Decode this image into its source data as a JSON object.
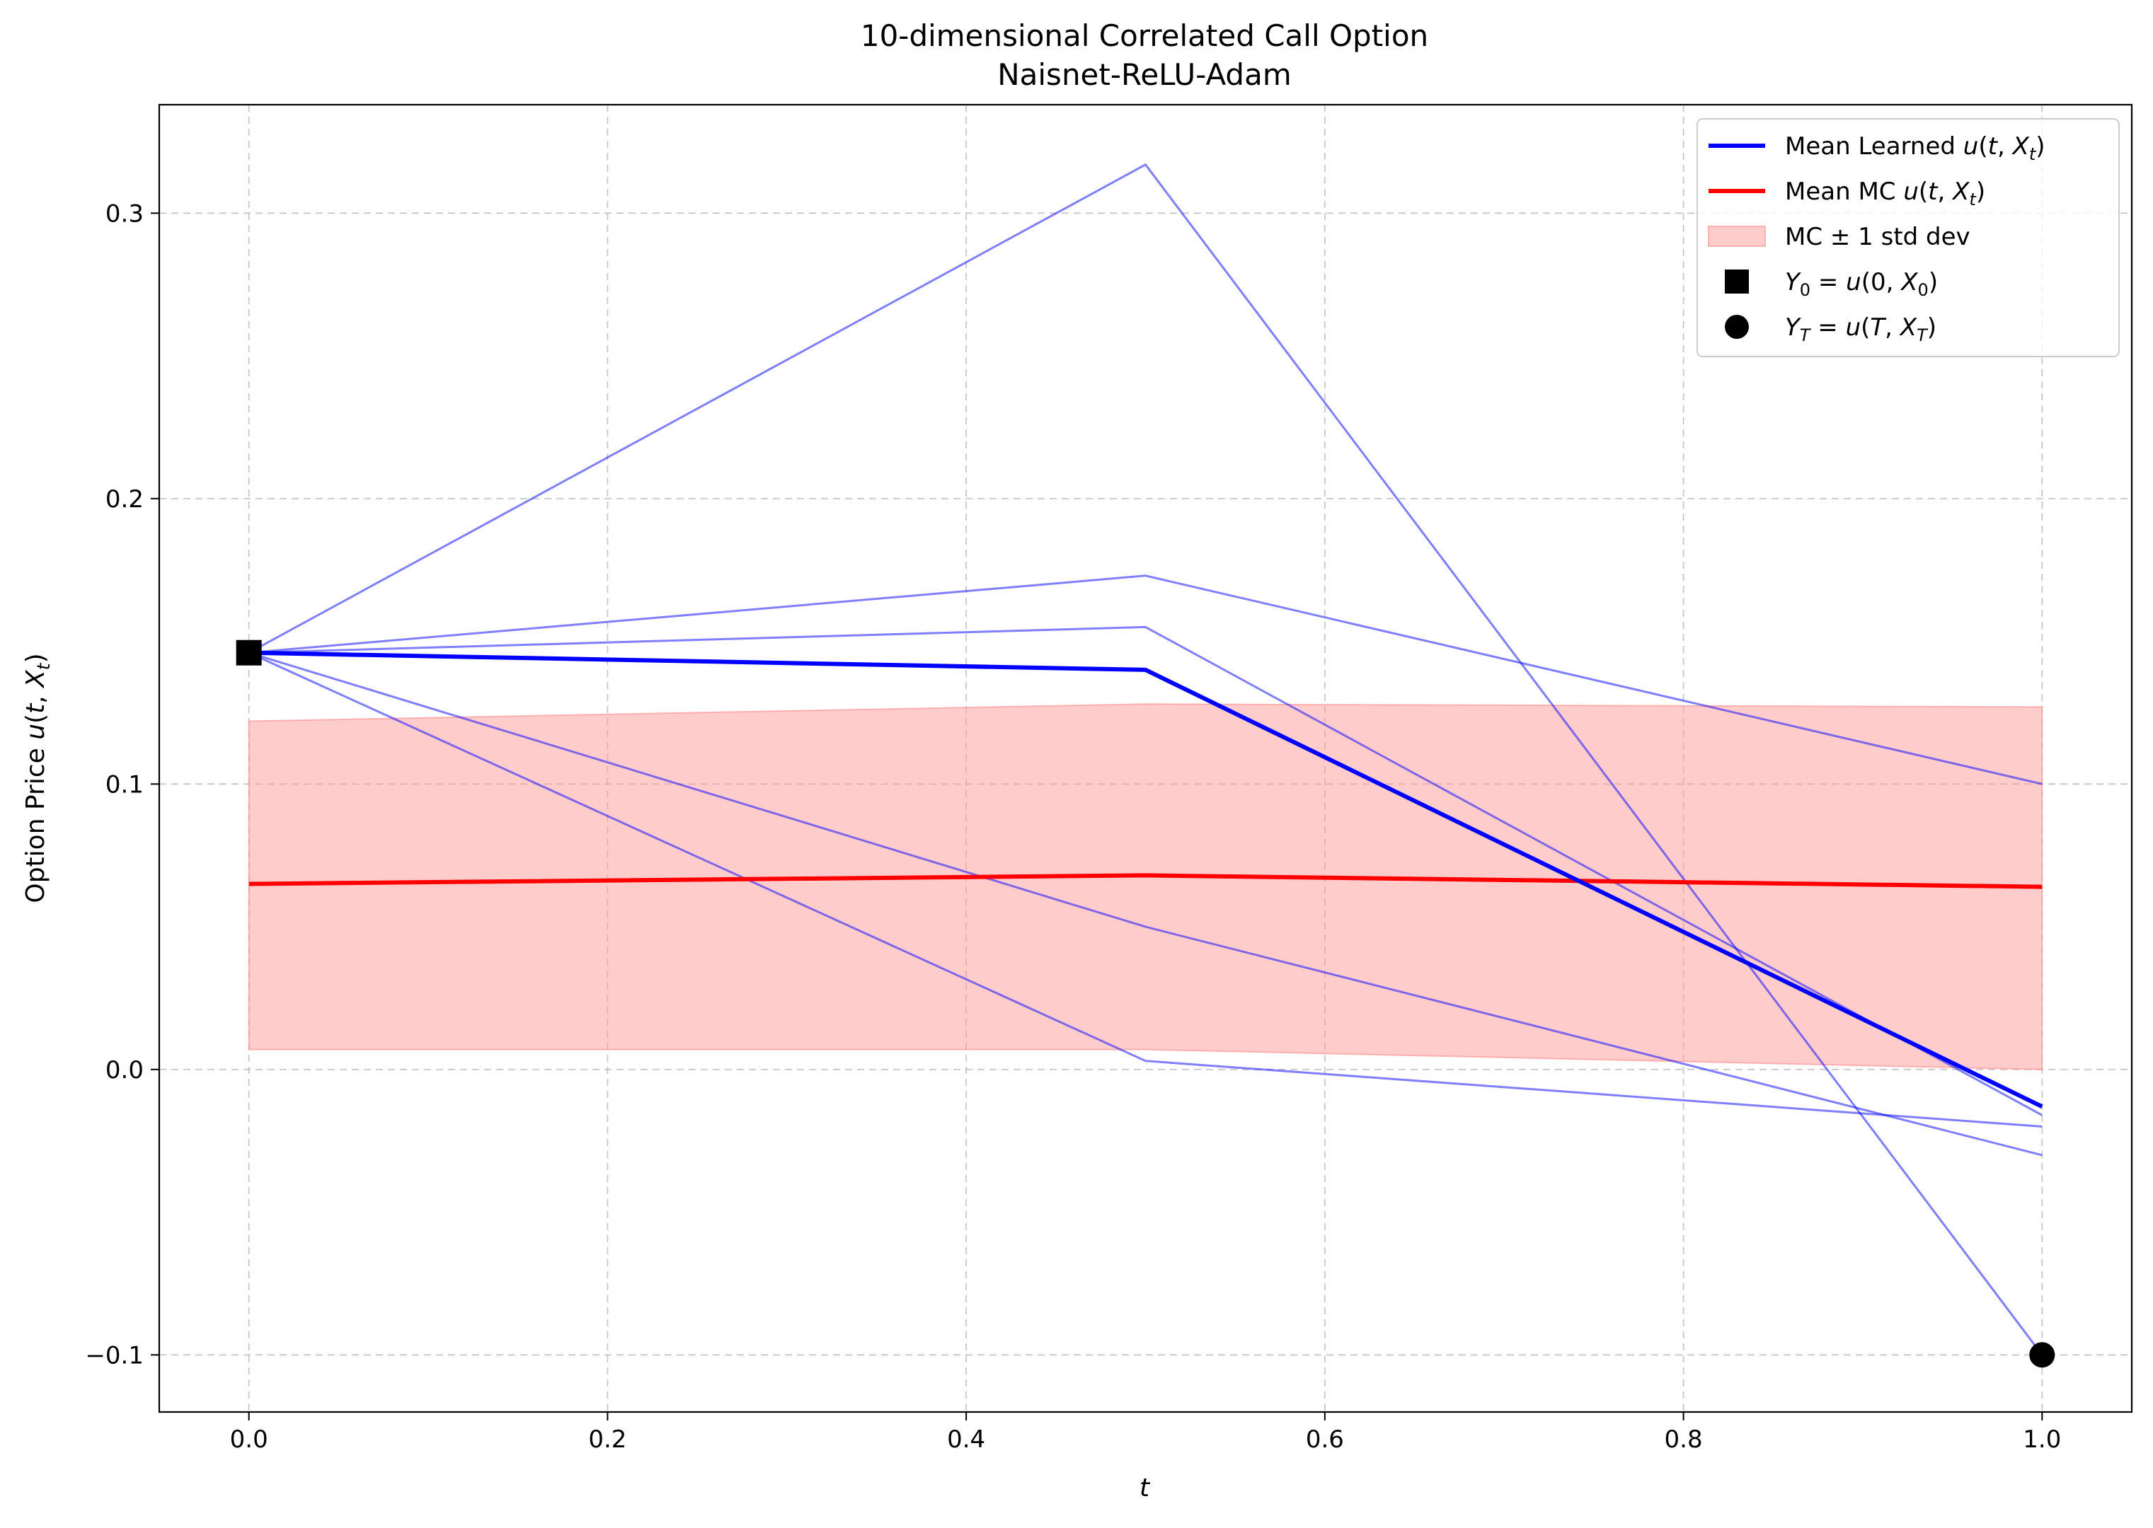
{
  "chart_data": {
    "type": "line",
    "title": "10-dimensional Correlated Call Option",
    "subtitle": "Naisnet-ReLU-Adam",
    "xlabel": "t",
    "ylabel": "Option Price u(t, X_t)",
    "ylabel_parts": {
      "prefix": "Option Price ",
      "func": "u",
      "open": "(",
      "arg1": "t",
      "sep": ", ",
      "arg2": "X",
      "arg2_sub": "t",
      "close": ")"
    },
    "xlim": [
      -0.05,
      1.05
    ],
    "ylim": [
      -0.12,
      0.338
    ],
    "x_ticks": [
      0.0,
      0.2,
      0.4,
      0.6,
      0.8,
      1.0
    ],
    "x_tick_labels": [
      "0.0",
      "0.2",
      "0.4",
      "0.6",
      "0.8",
      "1.0"
    ],
    "y_ticks": [
      -0.1,
      0.0,
      0.1,
      0.2,
      0.3
    ],
    "y_tick_labels": [
      "−0.1",
      "0.0",
      "0.1",
      "0.2",
      "0.3"
    ],
    "grid": true,
    "legend_position": "top-right",
    "x": [
      0.0,
      0.5,
      1.0
    ],
    "sample_paths": [
      [
        0.146,
        0.317,
        -0.1
      ],
      [
        0.146,
        0.173,
        0.1
      ],
      [
        0.146,
        0.155,
        -0.016
      ],
      [
        0.146,
        0.05,
        -0.03
      ],
      [
        0.146,
        0.003,
        -0.02
      ]
    ],
    "series": [
      {
        "name": "Mean Learned u(t, X_t)",
        "values": [
          0.146,
          0.14,
          -0.013
        ],
        "color": "#0000ff"
      },
      {
        "name": "Mean MC u(t, X_t)",
        "values": [
          0.065,
          0.068,
          0.064
        ],
        "color": "#ff0000"
      }
    ],
    "band": {
      "name": "MC ± 1 std dev",
      "upper": [
        0.122,
        0.128,
        0.127
      ],
      "lower": [
        0.007,
        0.007,
        0.0
      ],
      "color": "#ff9999"
    },
    "markers": [
      {
        "name": "Y_0 = u(0, X_0)",
        "shape": "square",
        "x": 0.0,
        "y": 0.146
      },
      {
        "name": "Y_T = u(T, X_T)",
        "shape": "circle",
        "x": 1.0,
        "y": -0.1
      }
    ],
    "legend": [
      {
        "kind": "line",
        "color": "#0000ff",
        "parts": [
          {
            "t": "Mean Learned "
          },
          {
            "t": "u",
            "i": true
          },
          {
            "t": "("
          },
          {
            "t": "t",
            "i": true
          },
          {
            "t": ", "
          },
          {
            "t": "X",
            "i": true
          },
          {
            "t": "t",
            "i": true,
            "sub": true
          },
          {
            "t": ")"
          }
        ]
      },
      {
        "kind": "line",
        "color": "#ff0000",
        "parts": [
          {
            "t": "Mean MC "
          },
          {
            "t": "u",
            "i": true
          },
          {
            "t": "("
          },
          {
            "t": "t",
            "i": true
          },
          {
            "t": ", "
          },
          {
            "t": "X",
            "i": true
          },
          {
            "t": "t",
            "i": true,
            "sub": true
          },
          {
            "t": ")"
          }
        ]
      },
      {
        "kind": "patch",
        "color": "#ff9999",
        "parts": [
          {
            "t": "MC ± 1 std dev"
          }
        ]
      },
      {
        "kind": "square",
        "color": "#000000",
        "parts": [
          {
            "t": "Y",
            "i": true
          },
          {
            "t": "0",
            "sub": true
          },
          {
            "t": " = "
          },
          {
            "t": "u",
            "i": true
          },
          {
            "t": "(0, "
          },
          {
            "t": "X",
            "i": true
          },
          {
            "t": "0",
            "sub": true
          },
          {
            "t": ")"
          }
        ]
      },
      {
        "kind": "circle",
        "color": "#000000",
        "parts": [
          {
            "t": "Y",
            "i": true
          },
          {
            "t": "T",
            "i": true,
            "sub": true
          },
          {
            "t": " = "
          },
          {
            "t": "u",
            "i": true
          },
          {
            "t": "("
          },
          {
            "t": "T",
            "i": true
          },
          {
            "t": ", "
          },
          {
            "t": "X",
            "i": true
          },
          {
            "t": "T",
            "i": true,
            "sub": true
          },
          {
            "t": ")"
          }
        ]
      }
    ]
  }
}
